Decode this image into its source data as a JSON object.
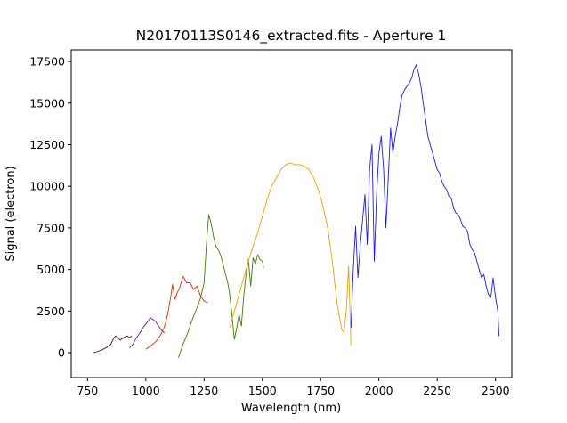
{
  "chart_data": {
    "type": "line",
    "title": "N20170113S0146_extracted.fits - Aperture 1",
    "xlabel": "Wavelength (nm)",
    "ylabel": "Signal (electron)",
    "xlim": [
      680,
      2570
    ],
    "ylim": [
      -1500,
      18200
    ],
    "xticks": [
      750,
      1000,
      1250,
      1500,
      1750,
      2000,
      2250,
      2500
    ],
    "yticks": [
      0,
      2500,
      5000,
      7500,
      10000,
      12500,
      15000,
      17500
    ],
    "grid": false,
    "legend": "none",
    "series": [
      {
        "color": "#5b0f0f",
        "x": [
          775,
          790,
          810,
          830,
          850,
          860,
          870,
          880,
          890,
          900,
          910,
          920,
          930,
          940
        ],
        "y": [
          0,
          50,
          150,
          300,
          500,
          800,
          1000,
          900,
          750,
          850,
          950,
          1000,
          900,
          1000
        ]
      },
      {
        "color": "#6a1b9a",
        "x": [
          930,
          945,
          960,
          975,
          990,
          1005,
          1020,
          1030,
          1040,
          1050,
          1060,
          1070,
          1080
        ],
        "y": [
          300,
          500,
          900,
          1200,
          1550,
          1800,
          2100,
          2000,
          1900,
          1700,
          1500,
          1300,
          1200
        ]
      },
      {
        "color": "#d62f14",
        "x": [
          1000,
          1015,
          1030,
          1045,
          1055,
          1065,
          1075,
          1085,
          1095,
          1105,
          1115,
          1125,
          1135,
          1145,
          1160,
          1175,
          1190,
          1205,
          1220,
          1235,
          1250,
          1265
        ],
        "y": [
          200,
          350,
          500,
          700,
          900,
          1100,
          1400,
          1800,
          2400,
          3200,
          4100,
          3200,
          3600,
          3900,
          4600,
          4200,
          4200,
          3800,
          4000,
          3400,
          3100,
          3000
        ]
      },
      {
        "color": "#3f7a0a",
        "x": [
          1140,
          1160,
          1180,
          1200,
          1220,
          1235,
          1250,
          1260,
          1270,
          1280,
          1290,
          1300,
          1310,
          1320,
          1330,
          1340,
          1350,
          1360,
          1370,
          1380,
          1390,
          1400,
          1410,
          1420,
          1430,
          1440,
          1450,
          1460,
          1470,
          1480,
          1490,
          1500,
          1505
        ],
        "y": [
          -300,
          500,
          1200,
          2000,
          2700,
          3300,
          4200,
          6500,
          8300,
          7800,
          7000,
          6400,
          6200,
          5900,
          5400,
          4800,
          4300,
          3500,
          2200,
          800,
          1500,
          2300,
          1600,
          3400,
          4700,
          5600,
          4000,
          5700,
          5300,
          5900,
          5600,
          5500,
          5100
        ]
      },
      {
        "color": "#e8a200",
        "x": [
          1360,
          1380,
          1400,
          1420,
          1440,
          1460,
          1480,
          1500,
          1520,
          1540,
          1560,
          1580,
          1600,
          1620,
          1640,
          1660,
          1680,
          1700,
          1720,
          1740,
          1760,
          1780,
          1790,
          1800,
          1810,
          1820,
          1830,
          1840,
          1850,
          1860,
          1870,
          1880
        ],
        "y": [
          1500,
          2500,
          3500,
          4500,
          5500,
          6400,
          7200,
          8200,
          9200,
          10000,
          10500,
          11000,
          11300,
          11400,
          11300,
          11300,
          11200,
          11000,
          10500,
          9800,
          8800,
          7500,
          6500,
          5500,
          4200,
          3000,
          2200,
          1400,
          1200,
          2500,
          5200,
          400
        ]
      },
      {
        "color": "#1a1ae6",
        "x": [
          1880,
          1890,
          1900,
          1910,
          1920,
          1930,
          1940,
          1950,
          1960,
          1970,
          1980,
          1990,
          2000,
          2010,
          2020,
          2030,
          2040,
          2050,
          2060,
          2070,
          2080,
          2090,
          2100,
          2110,
          2120,
          2130,
          2140,
          2150,
          2160,
          2170,
          2180,
          2190,
          2200,
          2210,
          2220,
          2230,
          2240,
          2250,
          2260,
          2270,
          2280,
          2290,
          2300,
          2310,
          2320,
          2330,
          2340,
          2350,
          2360,
          2370,
          2380,
          2390,
          2400,
          2410,
          2420,
          2430,
          2440,
          2450,
          2460,
          2470,
          2480,
          2490,
          2500,
          2510,
          2515
        ],
        "y": [
          1500,
          5000,
          7600,
          4500,
          6500,
          8000,
          9500,
          6500,
          11000,
          12500,
          5500,
          9500,
          12000,
          13000,
          11000,
          7500,
          10500,
          13500,
          12000,
          13000,
          13800,
          14800,
          15500,
          15800,
          16000,
          16200,
          16500,
          17000,
          17300,
          16800,
          16000,
          15000,
          14000,
          13000,
          12500,
          12000,
          11500,
          11000,
          10800,
          10300,
          10000,
          9800,
          9400,
          9300,
          8700,
          8400,
          8300,
          8000,
          7600,
          7500,
          7300,
          6500,
          6200,
          6000,
          5500,
          5000,
          4500,
          4700,
          4000,
          3500,
          3300,
          4500,
          3300,
          2500,
          1000
        ]
      }
    ]
  }
}
